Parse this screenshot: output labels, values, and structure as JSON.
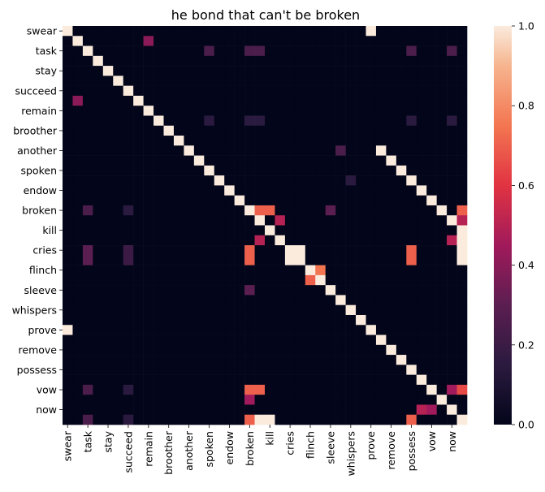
{
  "chart_data": {
    "type": "heatmap",
    "title": "he bond that can't be broken",
    "xlabel": "",
    "ylabel": "",
    "row_labels": [
      "swear",
      "",
      "task",
      "",
      "stay",
      "",
      "succeed",
      "",
      "remain",
      "",
      "broother",
      "",
      "another",
      "",
      "spoken",
      "",
      "endow",
      "",
      "broken",
      "",
      "kill",
      "",
      "cries",
      "",
      "flinch",
      "",
      "sleeve",
      "",
      "whispers",
      "",
      "prove",
      "",
      "remove",
      "",
      "possess",
      "",
      "vow",
      "",
      "now",
      ""
    ],
    "col_labels": [
      "swear",
      "",
      "task",
      "",
      "stay",
      "",
      "succeed",
      "",
      "remain",
      "",
      "broother",
      "",
      "another",
      "",
      "spoken",
      "",
      "endow",
      "",
      "broken",
      "",
      "kill",
      "",
      "cries",
      "",
      "flinch",
      "",
      "sleeve",
      "",
      "whispers",
      "",
      "prove",
      "",
      "remove",
      "",
      "possess",
      "",
      "vow",
      "",
      "now",
      ""
    ],
    "values": [
      [
        1.0,
        0,
        0,
        0,
        0,
        0,
        0,
        0,
        0,
        0,
        0,
        0,
        0,
        0,
        0,
        0,
        0,
        0,
        0,
        0,
        0,
        0,
        0,
        0,
        0,
        0,
        0,
        0,
        0,
        0,
        1.0,
        0,
        0,
        0,
        0,
        0,
        0,
        0,
        0,
        0
      ],
      [
        0,
        1.0,
        0,
        0,
        0,
        0,
        0,
        0,
        0.4,
        0,
        0,
        0,
        0,
        0,
        0,
        0,
        0,
        0,
        0,
        0,
        0,
        0,
        0,
        0,
        0,
        0,
        0,
        0,
        0,
        0,
        0,
        0,
        0,
        0,
        0,
        0,
        0,
        0,
        0,
        0
      ],
      [
        0,
        0,
        1.0,
        0,
        0,
        0,
        0,
        0,
        0,
        0,
        0,
        0,
        0,
        0,
        0.25,
        0,
        0,
        0,
        0.25,
        0.25,
        0,
        0,
        0,
        0,
        0,
        0,
        0,
        0,
        0,
        0,
        0,
        0,
        0,
        0,
        0.25,
        0,
        0,
        0,
        0.25,
        0
      ],
      [
        0,
        0,
        0,
        1.0,
        0,
        0,
        0,
        0,
        0,
        0,
        0,
        0,
        0,
        0,
        0,
        0,
        0,
        0,
        0,
        0,
        0,
        0,
        0,
        0,
        0,
        0,
        0,
        0,
        0,
        0,
        0,
        0,
        0,
        0,
        0,
        0,
        0,
        0,
        0,
        0
      ],
      [
        0,
        0,
        0,
        0,
        1.0,
        0,
        0,
        0,
        0,
        0,
        0,
        0,
        0,
        0,
        0,
        0,
        0,
        0,
        0,
        0,
        0,
        0,
        0,
        0,
        0,
        0,
        0,
        0,
        0,
        0,
        0,
        0,
        0,
        0,
        0,
        0,
        0,
        0,
        0,
        0
      ],
      [
        0,
        0,
        0,
        0,
        0,
        1.0,
        0,
        0,
        0,
        0,
        0,
        0,
        0,
        0,
        0,
        0,
        0,
        0,
        0,
        0,
        0,
        0,
        0,
        0,
        0,
        0,
        0,
        0,
        0,
        0,
        0,
        0,
        0,
        0,
        0,
        0,
        0,
        0,
        0,
        0
      ],
      [
        0,
        0,
        0,
        0,
        0,
        0,
        1.0,
        0,
        0,
        0,
        0,
        0,
        0,
        0,
        0,
        0,
        0,
        0,
        0,
        0,
        0,
        0,
        0,
        0,
        0,
        0,
        0,
        0,
        0,
        0,
        0,
        0,
        0,
        0,
        0,
        0,
        0,
        0,
        0,
        0
      ],
      [
        0,
        0.4,
        0,
        0,
        0,
        0,
        0,
        1.0,
        0,
        0,
        0,
        0,
        0,
        0,
        0,
        0,
        0,
        0,
        0,
        0,
        0,
        0,
        0,
        0,
        0,
        0,
        0,
        0,
        0,
        0,
        0,
        0,
        0,
        0,
        0,
        0,
        0,
        0,
        0,
        0
      ],
      [
        0,
        0,
        0,
        0,
        0,
        0,
        0,
        0,
        1.0,
        0,
        0,
        0,
        0,
        0,
        0,
        0,
        0,
        0,
        0,
        0,
        0,
        0,
        0,
        0,
        0,
        0,
        0,
        0,
        0,
        0,
        0,
        0,
        0,
        0,
        0,
        0,
        0,
        0,
        0,
        0
      ],
      [
        0,
        0,
        0,
        0,
        0,
        0,
        0,
        0,
        0,
        1.0,
        0,
        0,
        0,
        0,
        0.15,
        0,
        0,
        0,
        0.15,
        0.15,
        0,
        0,
        0,
        0,
        0,
        0,
        0,
        0,
        0,
        0,
        0,
        0,
        0,
        0,
        0.15,
        0,
        0,
        0,
        0.15,
        0
      ],
      [
        0,
        0,
        0,
        0,
        0,
        0,
        0,
        0,
        0,
        0,
        1.0,
        0,
        0,
        0,
        0,
        0,
        0,
        0,
        0,
        0,
        0,
        0,
        0,
        0,
        0,
        0,
        0,
        0,
        0,
        0,
        0,
        0,
        0,
        0,
        0,
        0,
        0,
        0,
        0,
        0
      ],
      [
        0,
        0,
        0,
        0,
        0,
        0,
        0,
        0,
        0,
        0,
        0,
        1.0,
        0,
        0,
        0,
        0,
        0,
        0,
        0,
        0,
        0,
        0,
        0,
        0,
        0,
        0,
        0,
        0,
        0,
        0,
        0,
        0,
        0,
        0,
        0,
        0,
        0,
        0,
        0,
        0
      ],
      [
        0,
        0,
        0,
        0,
        0,
        0,
        0,
        0,
        0,
        0,
        0,
        0,
        1.0,
        0,
        0,
        0,
        0,
        0,
        0,
        0,
        0,
        0,
        0,
        0,
        0,
        0,
        0,
        0.25,
        0,
        0,
        0,
        1.0,
        0,
        0,
        0,
        0,
        0,
        0,
        0,
        0
      ],
      [
        0,
        0,
        0,
        0,
        0,
        0,
        0,
        0,
        0,
        0,
        0,
        0,
        0,
        1.0,
        0,
        0,
        0,
        0,
        0,
        0,
        0,
        0,
        0,
        0,
        0,
        0,
        0,
        0,
        0,
        0,
        0,
        0,
        1.0,
        0,
        0,
        0,
        0,
        0,
        0,
        0
      ],
      [
        0,
        0,
        0,
        0,
        0,
        0,
        0,
        0,
        0,
        0,
        0,
        0,
        0,
        0,
        1.0,
        0,
        0,
        0,
        0,
        0,
        0,
        0,
        0,
        0,
        0,
        0,
        0,
        0,
        0,
        0,
        0,
        0,
        0,
        1.0,
        0,
        0,
        0,
        0,
        0,
        0
      ],
      [
        0,
        0,
        0,
        0,
        0,
        0,
        0,
        0,
        0,
        0,
        0,
        0,
        0,
        0,
        0,
        1.0,
        0,
        0,
        0,
        0,
        0,
        0,
        0,
        0,
        0,
        0,
        0,
        0,
        0.15,
        0,
        0,
        0,
        0,
        0,
        1.0,
        0,
        0,
        0,
        0,
        0
      ],
      [
        0,
        0,
        0,
        0,
        0,
        0,
        0,
        0,
        0,
        0,
        0,
        0,
        0,
        0,
        0,
        0,
        1.0,
        0,
        0,
        0,
        0,
        0,
        0,
        0,
        0,
        0,
        0,
        0,
        0,
        0,
        0,
        0,
        0,
        0,
        0,
        1.0,
        0,
        0,
        0,
        0
      ],
      [
        0,
        0,
        0,
        0,
        0,
        0,
        0,
        0,
        0,
        0,
        0,
        0,
        0,
        0,
        0,
        0,
        0,
        1.0,
        0,
        0,
        0,
        0,
        0,
        0,
        0,
        0,
        0,
        0,
        0,
        0,
        0,
        0,
        0,
        0,
        0,
        0,
        1.0,
        0,
        0,
        0
      ],
      [
        0,
        0,
        0.25,
        0,
        0,
        0,
        0.15,
        0,
        0,
        0,
        0,
        0,
        0,
        0,
        0,
        0,
        0,
        0,
        1.0,
        0.7,
        0.7,
        0,
        0,
        0,
        0,
        0,
        0.3,
        0,
        0,
        0,
        0,
        0,
        0,
        0,
        0,
        0,
        0,
        1.0,
        0,
        0.7
      ],
      [
        0,
        0,
        0,
        0,
        0,
        0,
        0,
        0,
        0,
        0,
        0,
        0,
        0,
        0,
        0,
        0,
        0,
        0,
        0,
        1.0,
        0,
        0.5,
        0,
        0,
        0,
        0,
        0,
        0,
        0,
        0,
        0,
        0,
        0,
        0,
        0,
        0,
        0,
        0,
        1.0,
        0.5
      ],
      [
        0,
        0,
        0,
        0,
        0,
        0,
        0,
        0,
        0,
        0,
        0,
        0,
        0,
        0,
        0,
        0,
        0,
        0,
        0,
        0,
        1.0,
        0,
        0,
        0,
        0,
        0,
        0,
        0,
        0,
        0,
        0,
        0,
        0,
        0,
        0,
        0,
        0,
        0,
        0,
        1.0
      ],
      [
        0,
        0,
        0,
        0,
        0,
        0,
        0,
        0,
        0,
        0,
        0,
        0,
        0,
        0,
        0,
        0,
        0,
        0,
        0,
        0.5,
        0,
        1.0,
        0,
        0,
        0,
        0,
        0,
        0,
        0,
        0,
        0,
        0,
        0,
        0,
        0,
        0,
        0,
        0,
        0.5,
        1.0
      ],
      [
        0,
        0,
        0.3,
        0,
        0,
        0,
        0.2,
        0,
        0,
        0,
        0,
        0,
        0,
        0,
        0,
        0,
        0,
        0,
        0.7,
        0,
        0,
        0,
        1.0,
        1.0,
        0,
        0,
        0,
        0,
        0,
        0,
        0,
        0,
        0,
        0,
        0.7,
        0,
        0,
        0,
        0,
        1.0
      ],
      [
        0,
        0,
        0.3,
        0,
        0,
        0,
        0.2,
        0,
        0,
        0,
        0,
        0,
        0,
        0,
        0,
        0,
        0,
        0,
        0.7,
        0,
        0,
        0,
        1.0,
        1.0,
        0,
        0,
        0,
        0,
        0,
        0,
        0,
        0,
        0,
        0,
        0.7,
        0,
        0,
        0,
        0,
        1.0
      ],
      [
        0,
        0,
        0,
        0,
        0,
        0,
        0,
        0,
        0,
        0,
        0,
        0,
        0,
        0,
        0,
        0,
        0,
        0,
        0,
        0,
        0,
        0,
        0,
        0,
        1.0,
        0.75,
        0,
        0,
        0,
        0,
        0,
        0,
        0,
        0,
        0,
        0,
        0,
        0,
        0,
        0
      ],
      [
        0,
        0,
        0,
        0,
        0,
        0,
        0,
        0,
        0,
        0,
        0,
        0,
        0,
        0,
        0,
        0,
        0,
        0,
        0,
        0,
        0,
        0,
        0,
        0,
        0.7,
        1.0,
        0,
        0,
        0,
        0,
        0,
        0,
        0,
        0,
        0,
        0,
        0,
        0,
        0,
        0
      ],
      [
        0,
        0,
        0,
        0,
        0,
        0,
        0,
        0,
        0,
        0,
        0,
        0,
        0,
        0,
        0,
        0,
        0,
        0,
        0.3,
        0,
        0,
        0,
        0,
        0,
        0,
        0,
        1.0,
        0,
        0,
        0,
        0,
        0,
        0,
        0,
        0,
        0,
        0,
        0,
        0,
        0
      ],
      [
        0,
        0,
        0,
        0,
        0,
        0,
        0,
        0,
        0,
        0,
        0,
        0,
        0,
        0,
        0,
        0,
        0,
        0,
        0,
        0,
        0,
        0,
        0,
        0,
        0,
        0,
        0,
        1.0,
        0,
        0,
        0,
        0,
        0,
        0,
        0,
        0,
        0,
        0,
        0,
        0
      ],
      [
        0,
        0,
        0,
        0,
        0,
        0,
        0,
        0,
        0,
        0,
        0,
        0,
        0,
        0,
        0,
        0,
        0,
        0,
        0,
        0,
        0,
        0,
        0,
        0,
        0,
        0,
        0,
        0,
        1.0,
        0,
        0,
        0,
        0,
        0,
        0,
        0,
        0,
        0,
        0,
        0
      ],
      [
        0,
        0,
        0,
        0,
        0,
        0,
        0,
        0,
        0,
        0,
        0,
        0,
        0,
        0,
        0,
        0,
        0,
        0,
        0,
        0,
        0,
        0,
        0,
        0,
        0,
        0,
        0,
        0,
        0,
        1.0,
        0,
        0,
        0,
        0,
        0,
        0,
        0,
        0,
        0,
        0
      ],
      [
        1.0,
        0,
        0,
        0,
        0,
        0,
        0,
        0,
        0,
        0,
        0,
        0,
        0,
        0,
        0,
        0,
        0,
        0,
        0,
        0,
        0,
        0,
        0,
        0,
        0,
        0,
        0,
        0,
        0,
        0,
        1.0,
        0,
        0,
        0,
        0,
        0,
        0,
        0,
        0,
        0
      ],
      [
        0,
        0,
        0,
        0,
        0,
        0,
        0,
        0,
        0,
        0,
        0,
        0,
        0,
        0,
        0,
        0,
        0,
        0,
        0,
        0,
        0,
        0,
        0,
        0,
        0,
        0,
        0,
        0,
        0,
        0,
        0,
        1.0,
        0,
        0,
        0,
        0,
        0,
        0,
        0,
        0
      ],
      [
        0,
        0,
        0,
        0,
        0,
        0,
        0,
        0,
        0,
        0,
        0,
        0,
        0,
        0,
        0,
        0,
        0,
        0,
        0,
        0,
        0,
        0,
        0,
        0,
        0,
        0,
        0,
        0,
        0,
        0,
        0,
        0,
        1.0,
        0,
        0,
        0,
        0,
        0,
        0,
        0
      ],
      [
        0,
        0,
        0,
        0,
        0,
        0,
        0,
        0,
        0,
        0,
        0,
        0,
        0,
        0,
        0,
        0,
        0,
        0,
        0,
        0,
        0,
        0,
        0,
        0,
        0,
        0,
        0,
        0,
        0,
        0,
        0,
        0,
        0,
        1.0,
        0,
        0,
        0,
        0,
        0,
        0
      ],
      [
        0,
        0,
        0,
        0,
        0,
        0,
        0,
        0,
        0,
        0,
        0,
        0,
        0,
        0,
        0,
        0,
        0,
        0,
        0,
        0,
        0,
        0,
        0,
        0,
        0,
        0,
        0,
        0,
        0,
        0,
        0,
        0,
        0,
        0,
        1.0,
        0,
        0,
        0,
        0,
        0
      ],
      [
        0,
        0,
        0,
        0,
        0,
        0,
        0,
        0,
        0,
        0,
        0,
        0,
        0,
        0,
        0,
        0,
        0,
        0,
        0,
        0,
        0,
        0,
        0,
        0,
        0,
        0,
        0,
        0,
        0,
        0,
        0,
        0,
        0,
        0,
        0,
        1.0,
        0,
        0,
        0,
        0
      ],
      [
        0,
        0,
        0.25,
        0,
        0,
        0,
        0.15,
        0,
        0,
        0,
        0,
        0,
        0,
        0,
        0,
        0,
        0,
        0,
        0.7,
        0.7,
        0,
        0,
        0,
        0,
        0,
        0,
        0,
        0,
        0,
        0,
        0,
        0,
        0,
        0,
        0,
        0,
        1.0,
        0,
        0.45,
        0.65
      ],
      [
        0,
        0,
        0,
        0,
        0,
        0,
        0,
        0,
        0,
        0,
        0,
        0,
        0,
        0,
        0,
        0,
        0,
        0,
        0.45,
        0,
        0,
        0,
        0,
        0,
        0,
        0,
        0,
        0,
        0,
        0,
        0,
        0,
        0,
        0,
        0,
        0,
        0,
        1.0,
        0,
        0
      ],
      [
        0,
        0,
        0,
        0,
        0,
        0,
        0,
        0,
        0,
        0,
        0,
        0,
        0,
        0,
        0,
        0,
        0,
        0,
        0,
        0,
        0,
        0,
        0,
        0,
        0,
        0,
        0,
        0,
        0,
        0,
        0,
        0,
        0,
        0,
        0,
        0.5,
        0.45,
        0,
        1.0,
        0
      ],
      [
        0,
        0,
        0.25,
        0,
        0,
        0,
        0.15,
        0,
        0,
        0,
        0,
        0,
        0,
        0,
        0,
        0,
        0,
        0,
        0.7,
        1.0,
        1.0,
        0,
        0,
        0,
        0,
        0,
        0,
        0,
        0,
        0,
        0,
        0,
        0,
        0,
        0.7,
        0,
        0,
        0,
        0,
        1.0
      ]
    ],
    "vmin": 0,
    "vmax": 1,
    "colormap": "rocket",
    "colorbar_ticks": [
      "0.0",
      "0.2",
      "0.4",
      "0.6",
      "0.8",
      "1.0"
    ],
    "colorbar_values": [
      0,
      0.2,
      0.4,
      0.6,
      0.8,
      1.0
    ]
  }
}
